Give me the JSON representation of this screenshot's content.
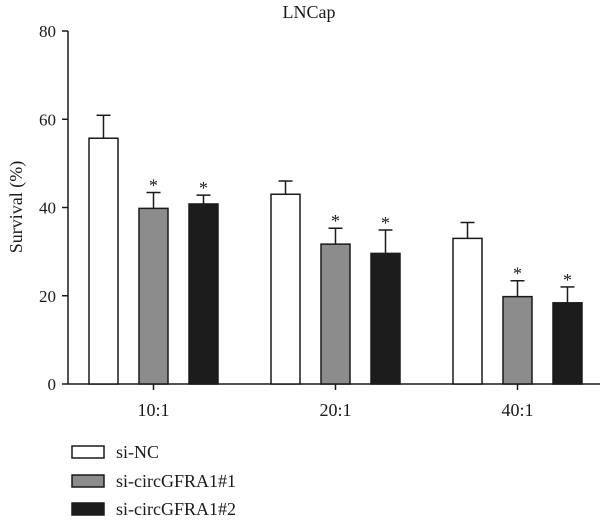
{
  "chart_data": {
    "type": "bar",
    "title": "LNCap",
    "xlabel": "",
    "ylabel": "Survival (%)",
    "ylim": [
      0,
      80
    ],
    "yticks": [
      0,
      20,
      40,
      60,
      80
    ],
    "categories": [
      "10:1",
      "20:1",
      "40:1"
    ],
    "series": [
      {
        "name": "si-NC",
        "color": "#ffffff",
        "values": [
          55.7,
          43.0,
          33.0
        ],
        "errors": [
          5.2,
          3.0,
          3.6
        ],
        "significance": [
          "",
          "",
          ""
        ]
      },
      {
        "name": "si-circGFRA1#1",
        "color": "#8c8c8c",
        "values": [
          39.8,
          31.7,
          19.8
        ],
        "errors": [
          3.6,
          3.6,
          3.6
        ],
        "significance": [
          "*",
          "*",
          "*"
        ]
      },
      {
        "name": "si-circGFRA1#2",
        "color": "#1c1c1c",
        "values": [
          40.8,
          29.6,
          18.4
        ],
        "errors": [
          2.0,
          5.3,
          3.6
        ],
        "significance": [
          "*",
          "*",
          "*"
        ]
      }
    ],
    "grid": false,
    "legend_position": "bottom-left"
  }
}
